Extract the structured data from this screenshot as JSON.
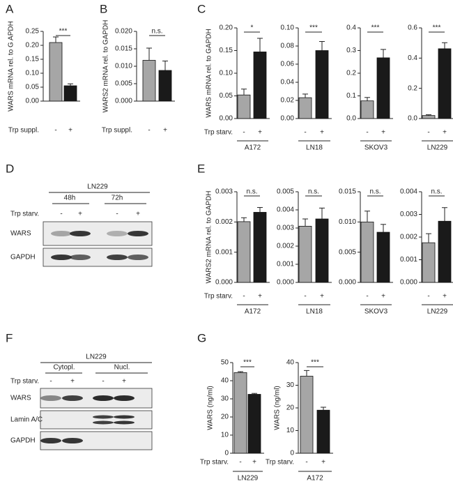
{
  "panel_labels": [
    "A",
    "B",
    "C",
    "D",
    "E",
    "F",
    "G"
  ],
  "chart_data": [
    {
      "type": "bar",
      "ylabel": "WARS mRNA rel. to G APDH",
      "xlabel": "Trp suppl.",
      "categories": [
        "-",
        "+"
      ],
      "values": [
        0.21,
        0.055
      ],
      "errors": [
        0.02,
        0.007
      ],
      "colors": [
        "#a6a6a6",
        "#1a1a1a"
      ],
      "ylim": [
        0,
        0.25
      ],
      "yticks": [
        {
          "value": 0,
          "label": "0.00"
        },
        {
          "value": 0.05,
          "label": "0.05"
        },
        {
          "value": 0.1,
          "label": "0.10"
        },
        {
          "value": 0.15,
          "label": "0.15"
        },
        {
          "value": 0.2,
          "label": "0.20"
        },
        {
          "value": 0.25,
          "label": "0.25"
        }
      ],
      "significance": "***"
    },
    {
      "type": "bar",
      "ylabel": "WARS2 mRNA rel. to GAPDH",
      "xlabel": "Trp suppl.",
      "categories": [
        "-",
        "+"
      ],
      "values": [
        0.0117,
        0.0088
      ],
      "errors": [
        0.0035,
        0.0027
      ],
      "colors": [
        "#a6a6a6",
        "#1a1a1a"
      ],
      "ylim": [
        0,
        0.02
      ],
      "yticks": [
        {
          "value": 0,
          "label": "0.000"
        },
        {
          "value": 0.005,
          "label": "0.005"
        },
        {
          "value": 0.01,
          "label": "0.010"
        },
        {
          "value": 0.015,
          "label": "0.015"
        },
        {
          "value": 0.02,
          "label": "0.020"
        }
      ],
      "significance": "n.s."
    },
    {
      "type": "bar",
      "ylabel": "WARS mRNA rel. to GAPDH",
      "xlabel": "Trp starv.",
      "group": "A172",
      "categories": [
        "-",
        "+"
      ],
      "values": [
        0.052,
        0.147
      ],
      "errors": [
        0.013,
        0.03
      ],
      "colors": [
        "#a6a6a6",
        "#1a1a1a"
      ],
      "ylim": [
        0,
        0.2
      ],
      "yticks": [
        {
          "value": 0,
          "label": "0.00"
        },
        {
          "value": 0.05,
          "label": "0.05"
        },
        {
          "value": 0.1,
          "label": "0.10"
        },
        {
          "value": 0.15,
          "label": "0.15"
        },
        {
          "value": 0.2,
          "label": "0.20"
        }
      ],
      "significance": "*"
    },
    {
      "type": "bar",
      "group": "LN18",
      "categories": [
        "-",
        "+"
      ],
      "values": [
        0.023,
        0.075
      ],
      "errors": [
        0.004,
        0.01
      ],
      "colors": [
        "#a6a6a6",
        "#1a1a1a"
      ],
      "ylim": [
        0,
        0.1
      ],
      "yticks": [
        {
          "value": 0,
          "label": "0.00"
        },
        {
          "value": 0.02,
          "label": "0.02"
        },
        {
          "value": 0.04,
          "label": "0.04"
        },
        {
          "value": 0.06,
          "label": "0.06"
        },
        {
          "value": 0.08,
          "label": "0.08"
        },
        {
          "value": 0.1,
          "label": "0.10"
        }
      ],
      "significance": "***"
    },
    {
      "type": "bar",
      "group": "SKOV3",
      "categories": [
        "-",
        "+"
      ],
      "values": [
        0.078,
        0.268
      ],
      "errors": [
        0.015,
        0.037
      ],
      "colors": [
        "#a6a6a6",
        "#1a1a1a"
      ],
      "ylim": [
        0,
        0.4
      ],
      "yticks": [
        {
          "value": 0,
          "label": "0.0"
        },
        0.1,
        0.2,
        0.3,
        0.4
      ],
      "significance": "***"
    },
    {
      "type": "bar",
      "group": "LN229",
      "categories": [
        "-",
        "+"
      ],
      "values": [
        0.02,
        0.462
      ],
      "errors": [
        0.005,
        0.04
      ],
      "colors": [
        "#a6a6a6",
        "#1a1a1a"
      ],
      "ylim": [
        0,
        0.6
      ],
      "yticks": [
        {
          "value": 0,
          "label": "0.0"
        },
        0.2,
        0.4,
        0.6
      ],
      "significance": "***"
    },
    {
      "type": "bar",
      "ylabel": "WARS2 mRNA rel. to GAPDH",
      "xlabel": "Trp starv.",
      "group": "A172",
      "categories": [
        "-",
        "+"
      ],
      "values": [
        0.00201,
        0.00232
      ],
      "errors": [
        0.00013,
        0.00016
      ],
      "colors": [
        "#a6a6a6",
        "#1a1a1a"
      ],
      "ylim": [
        0,
        0.003
      ],
      "yticks": [
        {
          "value": 0,
          "label": "0.000"
        },
        0.001,
        0.002,
        0.003
      ],
      "significance": "n.s."
    },
    {
      "type": "bar",
      "group": "LN18",
      "categories": [
        "-",
        "+"
      ],
      "values": [
        0.0031,
        0.0035
      ],
      "errors": [
        0.0004,
        0.0006
      ],
      "colors": [
        "#a6a6a6",
        "#1a1a1a"
      ],
      "ylim": [
        0,
        0.005
      ],
      "yticks": [
        {
          "value": 0,
          "label": "0.000"
        },
        0.001,
        0.002,
        0.003,
        0.004,
        0.005
      ],
      "significance": "n.s."
    },
    {
      "type": "bar",
      "group": "SKOV3",
      "categories": [
        "-",
        "+"
      ],
      "values": [
        0.01,
        0.0083
      ],
      "errors": [
        0.0018,
        0.0013
      ],
      "colors": [
        "#a6a6a6",
        "#1a1a1a"
      ],
      "ylim": [
        0,
        0.015
      ],
      "yticks": [
        {
          "value": 0,
          "label": "0.000"
        },
        0.005,
        {
          "value": 0.01,
          "label": "0.010"
        },
        0.015
      ],
      "significance": "n.s."
    },
    {
      "type": "bar",
      "group": "LN229",
      "categories": [
        "-",
        "+"
      ],
      "values": [
        0.00175,
        0.0027
      ],
      "errors": [
        0.0004,
        0.0006
      ],
      "colors": [
        "#a6a6a6",
        "#1a1a1a"
      ],
      "ylim": [
        0,
        0.004
      ],
      "yticks": [
        {
          "value": 0,
          "label": "0.000"
        },
        0.001,
        0.002,
        0.003,
        0.004
      ],
      "significance": "n.s."
    },
    {
      "type": "bar",
      "ylabel": "WARS  (ng/ml)",
      "xlabel": "Trp starv.",
      "group": "LN229",
      "categories": [
        "-",
        "+"
      ],
      "values": [
        44.5,
        32.5
      ],
      "errors": [
        0.5,
        0.5
      ],
      "colors": [
        "#a6a6a6",
        "#1a1a1a"
      ],
      "ylim": [
        0,
        50
      ],
      "yticks": [
        0,
        10,
        20,
        30,
        40,
        50
      ],
      "significance": "***"
    },
    {
      "type": "bar",
      "ylabel": "WARS  (ng/ml)",
      "xlabel": "Trp starv.",
      "group": "A172",
      "categories": [
        "-",
        "+"
      ],
      "values": [
        34,
        19
      ],
      "errors": [
        2.5,
        1.3
      ],
      "colors": [
        "#a6a6a6",
        "#1a1a1a"
      ],
      "ylim": [
        0,
        40
      ],
      "yticks": [
        0,
        10,
        20,
        30,
        40
      ],
      "significance": "***"
    }
  ],
  "blots": [
    {
      "cell_line": "LN229",
      "groups": [
        "48h",
        "72h"
      ],
      "condition": "Trp starv.",
      "lanes": [
        "-",
        "+",
        "-",
        "+"
      ],
      "rows": [
        "WARS",
        "GAPDH"
      ]
    },
    {
      "cell_line": "LN229",
      "groups": [
        "Cytopl.",
        "Nucl."
      ],
      "condition": "Trp starv.",
      "lanes": [
        "-",
        "+",
        "-",
        "+"
      ],
      "rows": [
        "WARS",
        "Lamin A/C",
        "GAPDH"
      ]
    }
  ]
}
